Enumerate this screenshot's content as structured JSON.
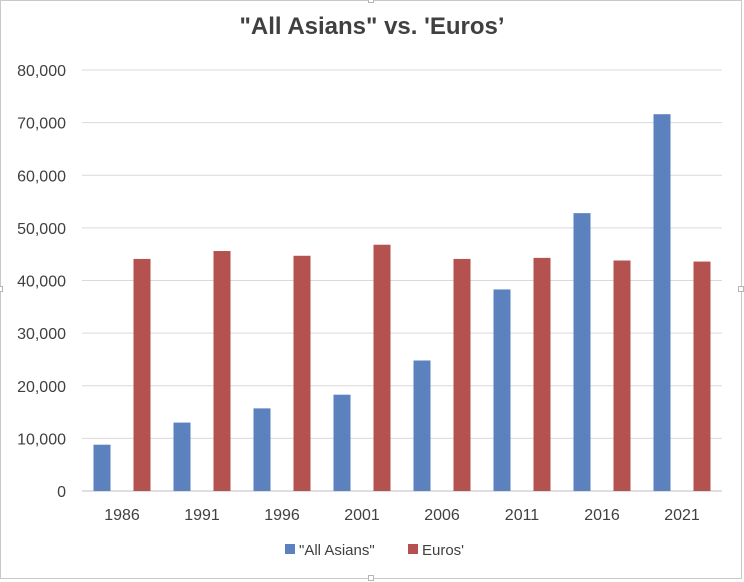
{
  "chart_data": {
    "type": "bar",
    "title": "\"All Asians\" vs. 'Euros’",
    "xlabel": "",
    "ylabel": "",
    "categories": [
      "1986",
      "1991",
      "1996",
      "2001",
      "2006",
      "2011",
      "2016",
      "2021"
    ],
    "series": [
      {
        "name": "\"All Asians\"",
        "color": "#5b82bf",
        "values": [
          8800,
          13000,
          15700,
          18300,
          24800,
          38300,
          52800,
          71600
        ]
      },
      {
        "name": "Euros'",
        "color": "#b4524f",
        "values": [
          44100,
          45600,
          44700,
          46800,
          44100,
          44300,
          43800,
          43600
        ]
      }
    ],
    "ylim": [
      0,
      80000
    ],
    "yticks": [
      0,
      10000,
      20000,
      30000,
      40000,
      50000,
      60000,
      70000,
      80000
    ],
    "ytick_labels": [
      "0",
      "10,000",
      "20,000",
      "30,000",
      "40,000",
      "50,000",
      "60,000",
      "70,000",
      "80,000"
    ],
    "grid": true,
    "legend_position": "bottom"
  }
}
